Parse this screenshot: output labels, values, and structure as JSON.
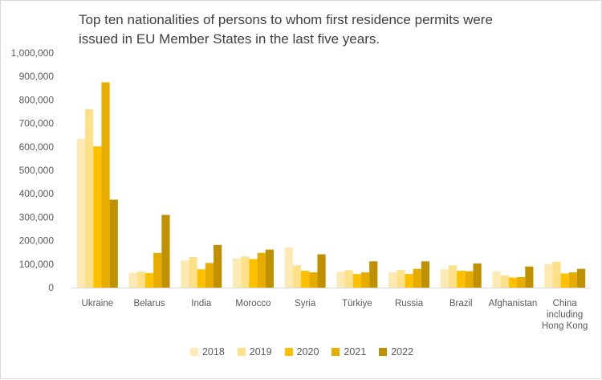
{
  "chart_data": {
    "type": "bar",
    "title_lines": [
      "Top ten nationalities of persons to whom first residence permits were",
      "issued in EU Member States in the last five years."
    ],
    "categories": [
      [
        "Ukraine"
      ],
      [
        "Belarus"
      ],
      [
        "India"
      ],
      [
        "Morocco"
      ],
      [
        "Syria"
      ],
      [
        "Türkiye"
      ],
      [
        "Russia"
      ],
      [
        "Brazil"
      ],
      [
        "Afghanistan"
      ],
      [
        "China",
        "including",
        "Hong Kong"
      ]
    ],
    "series": [
      {
        "name": "2018",
        "color": "#fde9b3",
        "values": [
          635000,
          63000,
          117000,
          125000,
          172000,
          68000,
          65000,
          78000,
          70000,
          100000
        ]
      },
      {
        "name": "2019",
        "color": "#fde08a",
        "values": [
          760000,
          68000,
          130000,
          133000,
          95000,
          75000,
          75000,
          95000,
          52000,
          110000
        ]
      },
      {
        "name": "2020",
        "color": "#ffc000",
        "values": [
          602000,
          62000,
          78000,
          122000,
          72000,
          58000,
          58000,
          72000,
          43000,
          60000
        ]
      },
      {
        "name": "2021",
        "color": "#e6ac00",
        "values": [
          875000,
          148000,
          105000,
          148000,
          65000,
          65000,
          80000,
          70000,
          45000,
          65000
        ]
      },
      {
        "name": "2022",
        "color": "#bf9000",
        "values": [
          375000,
          310000,
          182000,
          162000,
          142000,
          112000,
          112000,
          103000,
          90000,
          80000
        ]
      }
    ],
    "ylim": [
      0,
      1000000
    ],
    "yticks": [
      {
        "value": 0,
        "label": "0"
      },
      {
        "value": 100000,
        "label": "100,000"
      },
      {
        "value": 200000,
        "label": "200,000"
      },
      {
        "value": 300000,
        "label": "300,000"
      },
      {
        "value": 400000,
        "label": "400,000"
      },
      {
        "value": 500000,
        "label": "500,000"
      },
      {
        "value": 600000,
        "label": "600,000"
      },
      {
        "value": 700000,
        "label": "700,000"
      },
      {
        "value": 800000,
        "label": "800,000"
      },
      {
        "value": 900000,
        "label": "900,000"
      },
      {
        "value": 1000000,
        "label": "1,000,000"
      }
    ],
    "grid": false,
    "legend_position": "bottom"
  }
}
